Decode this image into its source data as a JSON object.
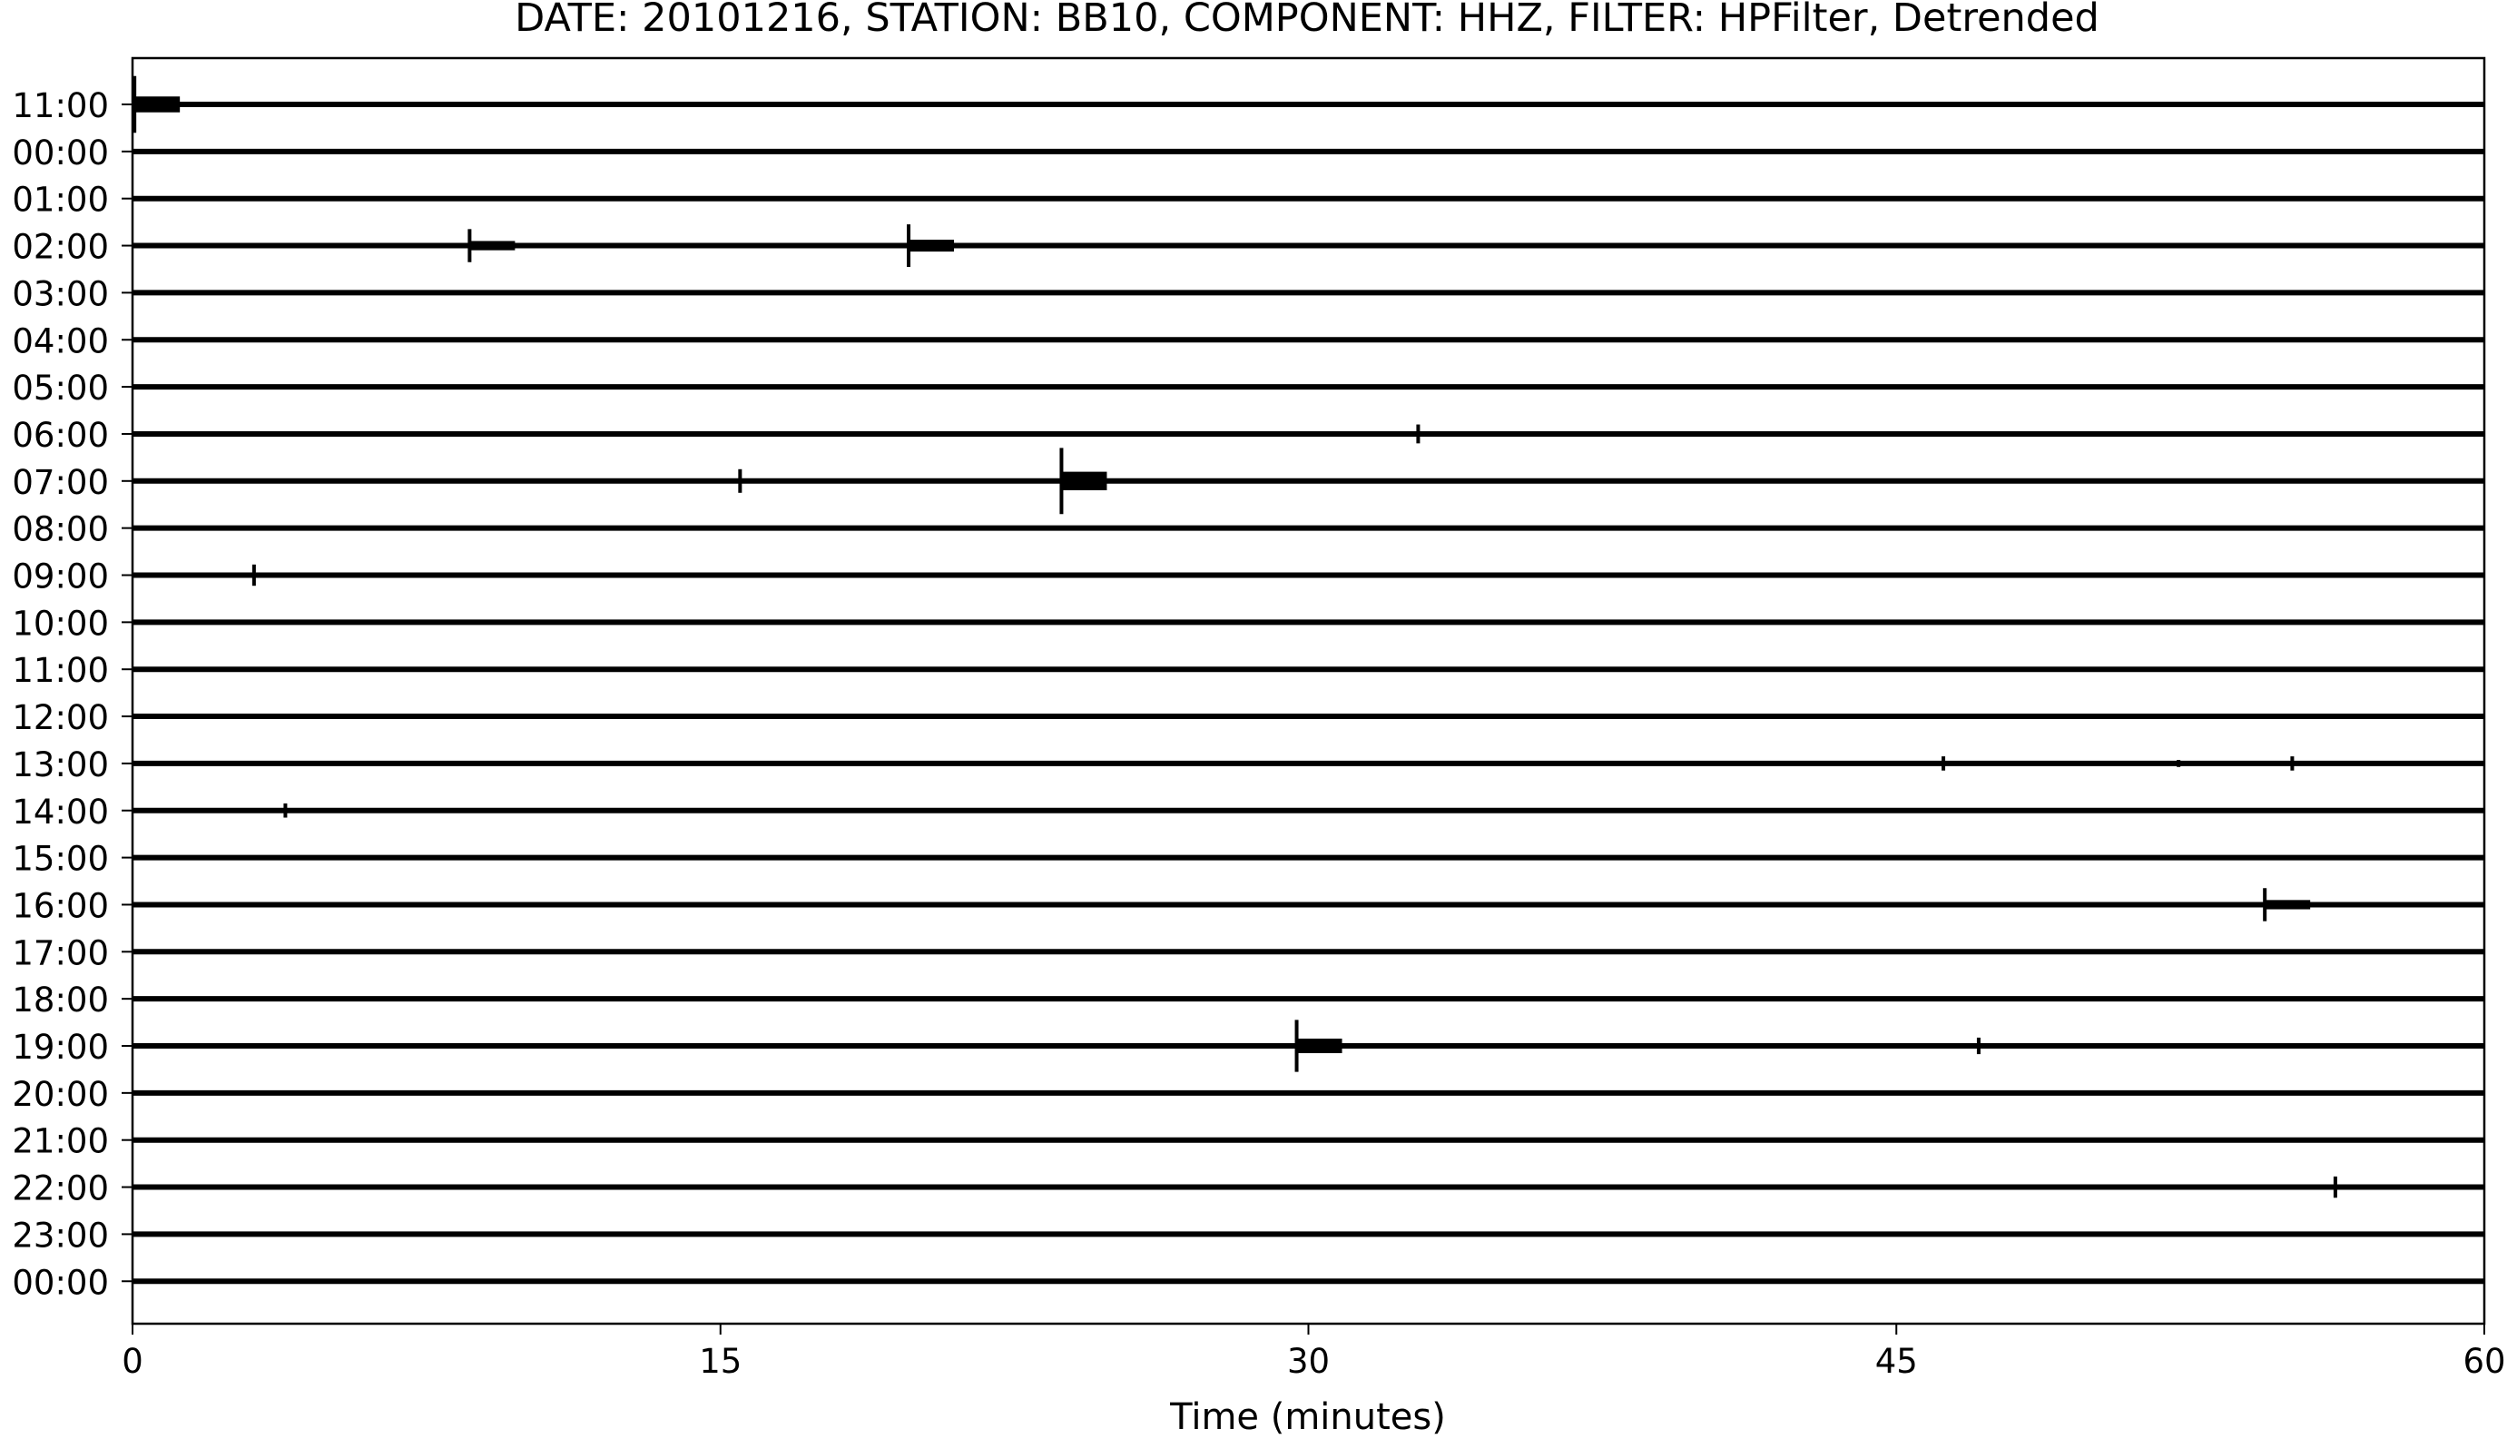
{
  "chart_data": {
    "type": "line",
    "title": "DATE: 20101216, STATION: BB10, COMPONENT: HHZ, FILTER: HPFilter, Detrended",
    "xlabel": "Time (minutes)",
    "ylabel": "",
    "xlim": [
      0,
      60
    ],
    "xticks": [
      "0",
      "15",
      "30",
      "45",
      "60"
    ],
    "xtick_values": [
      0,
      15,
      30,
      45,
      60
    ],
    "grid": false,
    "trace_color": "#000000",
    "rows": [
      {
        "label": "11:00",
        "events": [
          {
            "t": 0.05,
            "amp": 1.2
          }
        ]
      },
      {
        "label": "00:00",
        "events": []
      },
      {
        "label": "01:00",
        "events": []
      },
      {
        "label": "02:00",
        "events": [
          {
            "t": 8.6,
            "amp": 0.7
          },
          {
            "t": 19.8,
            "amp": 0.9
          }
        ]
      },
      {
        "label": "03:00",
        "events": []
      },
      {
        "label": "04:00",
        "events": []
      },
      {
        "label": "05:00",
        "events": []
      },
      {
        "label": "06:00",
        "events": [
          {
            "t": 32.8,
            "amp": 0.4
          }
        ]
      },
      {
        "label": "07:00",
        "events": [
          {
            "t": 15.5,
            "amp": 0.5
          },
          {
            "t": 23.7,
            "amp": 1.4
          }
        ]
      },
      {
        "label": "08:00",
        "events": []
      },
      {
        "label": "09:00",
        "events": [
          {
            "t": 3.1,
            "amp": 0.45
          }
        ]
      },
      {
        "label": "10:00",
        "events": []
      },
      {
        "label": "11:00",
        "events": []
      },
      {
        "label": "12:00",
        "events": []
      },
      {
        "label": "13:00",
        "events": [
          {
            "t": 46.2,
            "amp": 0.3
          },
          {
            "t": 52.2,
            "amp": 0.15
          },
          {
            "t": 55.1,
            "amp": 0.3
          }
        ]
      },
      {
        "label": "14:00",
        "events": [
          {
            "t": 3.9,
            "amp": 0.3
          }
        ]
      },
      {
        "label": "15:00",
        "events": []
      },
      {
        "label": "16:00",
        "events": [
          {
            "t": 54.4,
            "amp": 0.7
          }
        ]
      },
      {
        "label": "17:00",
        "events": []
      },
      {
        "label": "18:00",
        "events": []
      },
      {
        "label": "19:00",
        "events": [
          {
            "t": 29.7,
            "amp": 1.1
          },
          {
            "t": 47.1,
            "amp": 0.35
          }
        ]
      },
      {
        "label": "20:00",
        "events": []
      },
      {
        "label": "21:00",
        "events": []
      },
      {
        "label": "22:00",
        "events": [
          {
            "t": 56.2,
            "amp": 0.45
          }
        ]
      },
      {
        "label": "23:00",
        "events": []
      },
      {
        "label": "00:00",
        "events": []
      }
    ]
  }
}
